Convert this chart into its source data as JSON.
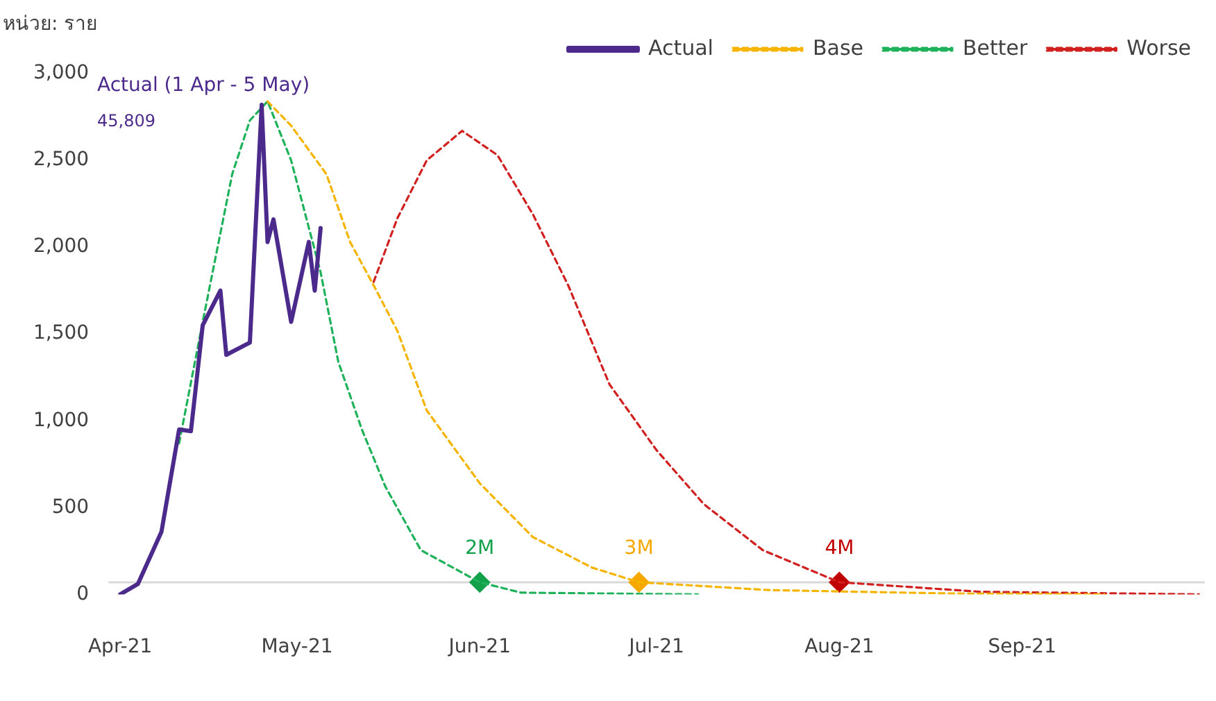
{
  "chart_data": {
    "type": "line",
    "ylabel": "หน่วย: ราย",
    "annotations": [
      "Actual (1 Apr - 5 May)",
      "45,809",
      {
        "text": "2M",
        "x": "2021-06-01",
        "y": 70
      },
      {
        "text": "3M",
        "x": "2021-06-28",
        "y": 70
      },
      {
        "text": "4M",
        "x": "2021-08-01",
        "y": 70
      }
    ],
    "xlim": [
      "2021-03-30",
      "2021-10-02"
    ],
    "xticks": [
      {
        "value": "2021-04-01",
        "label": "Apr-21"
      },
      {
        "value": "2021-05-01",
        "label": "May-21"
      },
      {
        "value": "2021-06-01",
        "label": "Jun-21"
      },
      {
        "value": "2021-07-01",
        "label": "Jul-21"
      },
      {
        "value": "2021-08-01",
        "label": "Aug-21"
      },
      {
        "value": "2021-09-01",
        "label": "Sep-21"
      }
    ],
    "ylim": [
      0,
      3000
    ],
    "yticks": [
      0,
      500,
      {
        "value": 1000,
        "label": "1,000"
      },
      {
        "value": 1500,
        "label": "1,500"
      },
      {
        "value": 2000,
        "label": "2,000"
      },
      {
        "value": 2500,
        "label": "2,500"
      },
      {
        "value": 3000,
        "label": "3,000"
      }
    ],
    "grid": false,
    "legend": "top right",
    "marker": "none",
    "ref_lines": [
      {
        "axis": "y",
        "value": 70,
        "color": "#d9d9d9"
      }
    ],
    "series": [
      {
        "name": "Actual",
        "color": "#4b2a8c",
        "line_style": "solid",
        "x": [
          "2021-04-01",
          "2021-04-04",
          "2021-04-08",
          "2021-04-11",
          "2021-04-13",
          "2021-04-15",
          "2021-04-18",
          "2021-04-19",
          "2021-04-23",
          "2021-04-25",
          "2021-04-26",
          "2021-04-27",
          "2021-04-30",
          "2021-05-03",
          "2021-05-04",
          "2021-05-05"
        ],
        "values": [
          0,
          60,
          360,
          950,
          940,
          1550,
          1750,
          1380,
          1450,
          2820,
          2030,
          2160,
          1570,
          2030,
          1750,
          2110
        ]
      },
      {
        "name": "Base",
        "color": "#f5b400",
        "line_style": "dashed",
        "x": [
          "2021-04-26",
          "2021-04-30",
          "2021-05-06",
          "2021-05-10",
          "2021-05-14",
          "2021-05-18",
          "2021-05-23",
          "2021-06-01",
          "2021-06-10",
          "2021-06-20",
          "2021-06-28",
          "2021-07-20",
          "2021-08-20",
          "2021-09-15"
        ],
        "values": [
          2840,
          2700,
          2420,
          2030,
          1780,
          1520,
          1060,
          640,
          330,
          155,
          70,
          25,
          5,
          0
        ]
      },
      {
        "name": "Better",
        "color": "#1fb25a",
        "line_style": "dashed",
        "x": [
          "2021-04-11",
          "2021-04-15",
          "2021-04-20",
          "2021-04-23",
          "2021-04-26",
          "2021-04-30",
          "2021-05-05",
          "2021-05-08",
          "2021-05-12",
          "2021-05-16",
          "2021-05-22",
          "2021-06-01",
          "2021-06-08",
          "2021-07-08"
        ],
        "values": [
          870,
          1570,
          2420,
          2730,
          2840,
          2500,
          1855,
          1340,
          950,
          620,
          255,
          70,
          10,
          0
        ]
      },
      {
        "name": "Worse",
        "color": "#d02020",
        "line_style": "dashed",
        "x": [
          "2021-05-14",
          "2021-05-18",
          "2021-05-23",
          "2021-05-29",
          "2021-06-04",
          "2021-06-10",
          "2021-06-16",
          "2021-06-23",
          "2021-07-01",
          "2021-07-09",
          "2021-07-19",
          "2021-08-01",
          "2021-08-25",
          "2021-10-01"
        ],
        "values": [
          1800,
          2165,
          2500,
          2670,
          2530,
          2190,
          1780,
          1210,
          830,
          520,
          255,
          70,
          15,
          0
        ]
      },
      {
        "type": "scatter",
        "marker": "diamond",
        "x": [
          "2021-06-01",
          "2021-06-28",
          "2021-08-01"
        ],
        "values": [
          70,
          70,
          70
        ],
        "colors": [
          "#12a14a",
          "#f7a800",
          "#c00000"
        ]
      }
    ]
  }
}
